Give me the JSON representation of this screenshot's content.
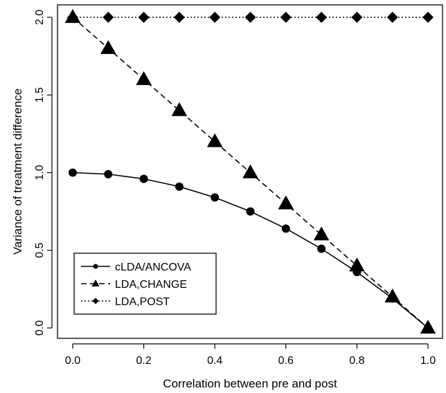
{
  "chart_data": {
    "type": "line",
    "xlabel": "Correlation between pre and post",
    "ylabel": "Variance of treatment difference",
    "xlim": [
      0.0,
      1.0
    ],
    "ylim": [
      0.0,
      2.0
    ],
    "x_ticks": [
      "0.0",
      "0.2",
      "0.4",
      "0.6",
      "0.8",
      "1.0"
    ],
    "y_ticks": [
      "0.0",
      "0.5",
      "1.0",
      "1.5",
      "2.0"
    ],
    "grid": false,
    "legend_position": "bottom-left",
    "x": [
      0.0,
      0.1,
      0.2,
      0.3,
      0.4,
      0.5,
      0.6,
      0.7,
      0.8,
      0.9,
      1.0
    ],
    "series": [
      {
        "name": "cLDA/ANCOVA",
        "line_style": "solid",
        "marker": "circle",
        "values": [
          1.0,
          0.99,
          0.96,
          0.91,
          0.84,
          0.75,
          0.64,
          0.51,
          0.36,
          0.19,
          0.0
        ]
      },
      {
        "name": "LDA,CHANGE",
        "line_style": "dashed",
        "marker": "triangle",
        "values": [
          2.0,
          1.8,
          1.6,
          1.4,
          1.2,
          1.0,
          0.8,
          0.6,
          0.4,
          0.2,
          0.0
        ]
      },
      {
        "name": "LDA,POST",
        "line_style": "dotted",
        "marker": "diamond",
        "values": [
          2.0,
          2.0,
          2.0,
          2.0,
          2.0,
          2.0,
          2.0,
          2.0,
          2.0,
          2.0,
          2.0
        ]
      }
    ]
  }
}
